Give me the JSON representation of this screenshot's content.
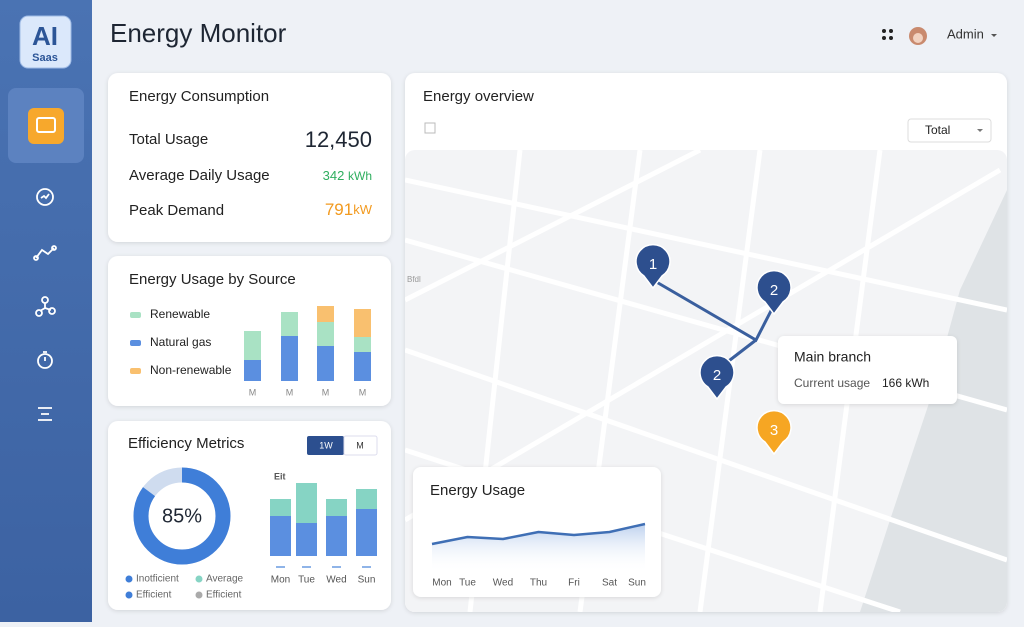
{
  "sidebar": {
    "logo": {
      "title": "AI",
      "subtitle": "Saas"
    }
  },
  "header": {
    "title": "Energy Monitor",
    "user": "Admin"
  },
  "consumption": {
    "title": "Energy Consumption",
    "rows": [
      {
        "label": "Total Usage",
        "value": "12,450"
      },
      {
        "label": "Average Daily Usage",
        "value": "342",
        "unit": "kWh"
      },
      {
        "label": "Peak Demand",
        "value": "791",
        "unit": "kW"
      }
    ]
  },
  "source": {
    "title": "Energy Usage by Source",
    "type": "bar",
    "categories": [
      "M",
      "M",
      "M",
      "M"
    ],
    "series": [
      {
        "name": "Natural gas",
        "color": "#5b8fe0",
        "values": [
          21,
          45,
          35,
          29
        ]
      },
      {
        "name": "Renewable",
        "color": "#a9e2c4",
        "values": [
          29,
          24,
          24,
          15
        ]
      },
      {
        "name": "Non-renewable",
        "color": "#f9c06f",
        "values": [
          0,
          0,
          16,
          28
        ]
      }
    ],
    "legend": [
      "Renewable",
      "Natural gas",
      "Non-renewable"
    ]
  },
  "efficiency": {
    "title": "Efficiency Metrics",
    "toggle": [
      "1W",
      "M"
    ],
    "donut": {
      "value": 85,
      "label": "85%"
    },
    "legend": [
      "Inotficient",
      "Average",
      "Efficient",
      "Efficient"
    ],
    "bars": {
      "label": "Eit",
      "categories": [
        "Mon",
        "Tue",
        "Wed",
        "Sun"
      ],
      "series": [
        {
          "color": "#5b8fe0",
          "values": [
            40,
            33,
            40,
            47
          ]
        },
        {
          "color": "#86d4c4",
          "values": [
            17,
            40,
            17,
            20
          ]
        }
      ]
    }
  },
  "overview": {
    "title": "Energy overview",
    "filter": "Total",
    "map_label": "Bfdl",
    "markers": [
      "1",
      "2",
      "2",
      "3"
    ],
    "tooltip": {
      "title": "Main branch",
      "label": "Current usage",
      "value": "166 kWh"
    }
  },
  "usage": {
    "title": "Energy Usage",
    "type": "line",
    "categories": [
      "Mon",
      "Tue",
      "Wed",
      "Thu",
      "Fri",
      "Sat",
      "Sun"
    ],
    "values": [
      28,
      35,
      33,
      40,
      37,
      40,
      48
    ],
    "color": "#3f6fb5",
    "ylim": [
      0,
      60
    ]
  }
}
